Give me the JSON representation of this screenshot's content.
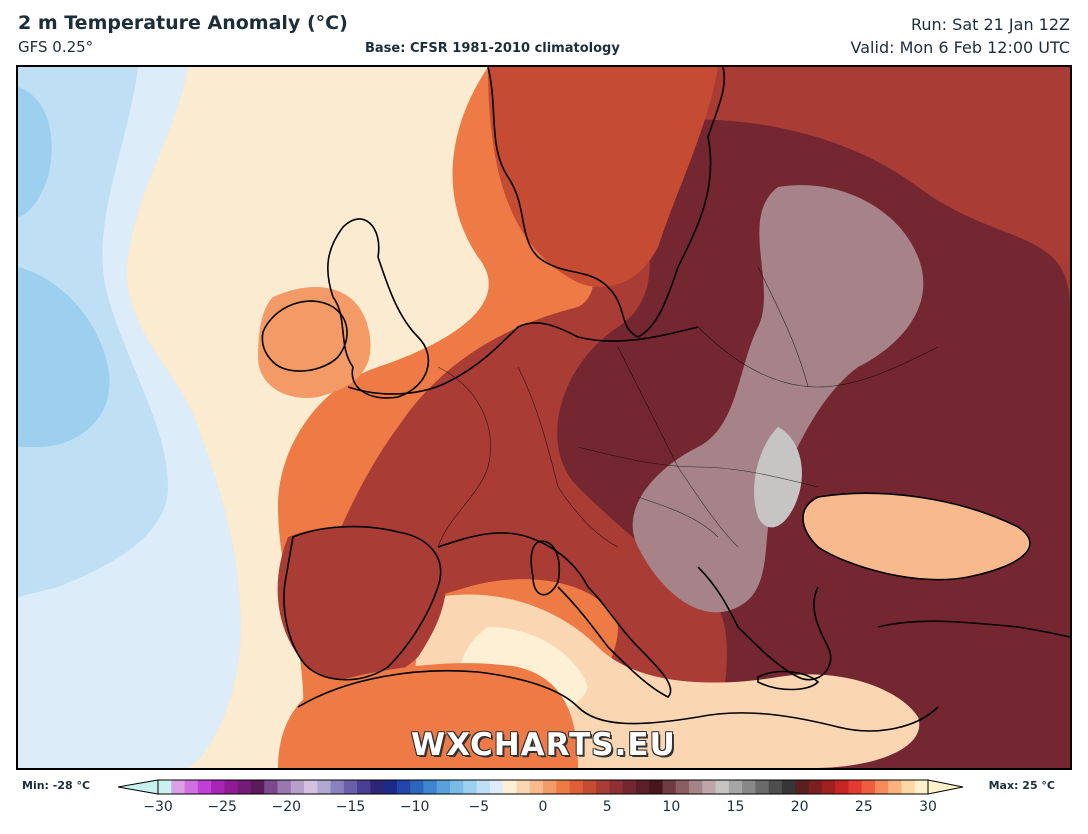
{
  "header": {
    "title": "2 m Temperature Anomaly (°C)",
    "model": "GFS 0.25°",
    "base": "Base: CFSR 1981-2010 climatology",
    "run": "Run: Sat 21 Jan 12Z",
    "valid": "Valid: Mon 6 Feb 12:00 UTC"
  },
  "watermark": "WXCHARTS.EU",
  "colorbar": {
    "min_label": "Min: -28 °C",
    "max_label": "Max: 25 °C",
    "ticks": [
      "−30",
      "−25",
      "−20",
      "−15",
      "−10",
      "−5",
      "0",
      "5",
      "10",
      "15",
      "20",
      "25",
      "30"
    ],
    "range": [
      -30,
      30
    ],
    "colors": [
      "#c7f2ef",
      "#d9a0e8",
      "#cf6fe0",
      "#c13ed8",
      "#a925b8",
      "#8e1c94",
      "#741a77",
      "#5a1a5c",
      "#7b4a8c",
      "#9a77b0",
      "#b79fcb",
      "#d2c2e0",
      "#b0a8d0",
      "#8a82be",
      "#6a5fa8",
      "#4b3f93",
      "#2e2478",
      "#1c2a8a",
      "#1f46a8",
      "#2d65bd",
      "#3f84cf",
      "#5aa1dc",
      "#7abbe6",
      "#9dd0ee",
      "#bfe0f4",
      "#dcedf9",
      "#fdf0d5",
      "#fbd6b3",
      "#f8b98c",
      "#f49a66",
      "#ee7a45",
      "#de5f35",
      "#c54c33",
      "#a93c35",
      "#8f3034",
      "#742731",
      "#5c1e27",
      "#4a161d",
      "#6e3c40",
      "#8a5e62",
      "#a58388",
      "#bea5a9",
      "#c7c4c4",
      "#a6a6a6",
      "#888888",
      "#6a6a6a",
      "#4e4e4e",
      "#363636",
      "#5a1f1f",
      "#7b1f1f",
      "#a21f1f",
      "#c82424",
      "#e23b2f",
      "#f05c3e",
      "#f78a5a",
      "#fbb27d",
      "#fdd7a3",
      "#fef0c8"
    ]
  },
  "map": {
    "region": "Europe",
    "legend_colors": {
      "ocean_cold": "#a9d3ee",
      "neutral": "#fbebd0",
      "warm": "#f49a66",
      "very_warm": "#8a2b2b",
      "extreme": "#6e1e22"
    }
  }
}
